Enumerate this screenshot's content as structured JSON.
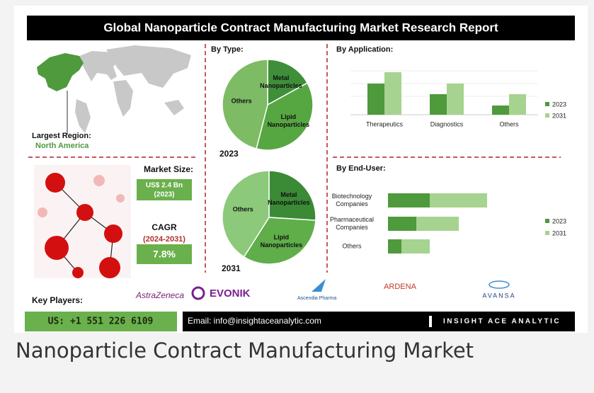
{
  "title": "Global Nanoparticle Contract Manufacturing Market Research Report",
  "region": {
    "label": "Largest Region:",
    "value": "North America"
  },
  "market_size": {
    "label": "Market Size:",
    "value": "US$ 2.4 Bn",
    "year": "(2023)"
  },
  "cagr": {
    "label": "CAGR",
    "period": "(2024-2031)",
    "value": "7.8%"
  },
  "by_type": {
    "type": "pie",
    "title": "By Type:",
    "pies": [
      {
        "year": "2023",
        "slices": [
          {
            "name": "Metal Nanoparticles",
            "value": 17,
            "color": "#3f8f3a"
          },
          {
            "name": "Lipid Nanoparticles",
            "value": 37,
            "color": "#56a642"
          },
          {
            "name": "Others",
            "value": 46,
            "color": "#7dbb64"
          }
        ]
      },
      {
        "year": "2031",
        "slices": [
          {
            "name": "Metal Nanoparticles",
            "value": 26,
            "color": "#3b8a36"
          },
          {
            "name": "Lipid Nanoparticles",
            "value": 33,
            "color": "#5fae4a"
          },
          {
            "name": "Others",
            "value": 41,
            "color": "#8cc97a"
          }
        ]
      }
    ]
  },
  "by_application": {
    "type": "bar",
    "title": "By Application:",
    "categories": [
      "Therapeutics",
      "Diagnostics",
      "Others"
    ],
    "series": [
      {
        "name": "2023",
        "color": "#4e9a3c",
        "values": [
          44,
          29,
          13
        ]
      },
      {
        "name": "2031",
        "color": "#a6d38f",
        "values": [
          60,
          44,
          29
        ]
      }
    ]
  },
  "by_end_user": {
    "type": "stacked_hbar",
    "title": "By End-User:",
    "categories": [
      "Biotechnology Companies",
      "Pharmaceutical Companies",
      "Others"
    ],
    "series": [
      {
        "name": "2023",
        "color": "#4e9a3c",
        "values": [
          59,
          40,
          19
        ]
      },
      {
        "name": "2031",
        "color": "#a6d38f",
        "values": [
          81,
          60,
          40
        ]
      }
    ]
  },
  "key_players": {
    "label": "Key Players:",
    "names": [
      "AstraZeneca",
      "EVONIK",
      "Ascendia Pharma",
      "ARDENA",
      "AVANSA"
    ]
  },
  "contact": {
    "phone": "US: +1 551 226 6109",
    "email": "Email: info@insightaceanalytic.com",
    "brand": "INSIGHT ACE ANALYTIC"
  },
  "caption": "Nanoparticle Contract Manufacturing Market"
}
